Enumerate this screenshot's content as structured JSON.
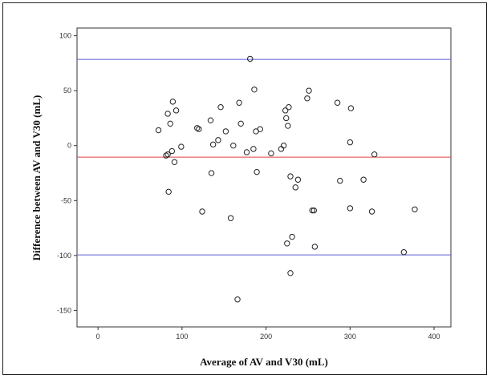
{
  "chart_data": {
    "type": "scatter",
    "xlabel": "Average of AV and V30 (mL)",
    "ylabel": "Difference between AV and V30 (mL)",
    "xlim": [
      -25,
      420
    ],
    "ylim": [
      -165,
      107
    ],
    "xticks": [
      0,
      100,
      200,
      300,
      400
    ],
    "yticks": [
      100,
      50,
      0,
      -50,
      -100,
      -150
    ],
    "grid": false,
    "marker": "open-circle",
    "reference_lines": [
      {
        "name": "upper limit of agreement",
        "y": 78.5,
        "color": "#5b5bd6"
      },
      {
        "name": "mean difference",
        "y": -10.5,
        "color": "#e04040"
      },
      {
        "name": "lower limit of agreement",
        "y": -99.5,
        "color": "#5b5bd6"
      }
    ],
    "points": [
      {
        "x": 72,
        "y": 14
      },
      {
        "x": 81,
        "y": -9
      },
      {
        "x": 83,
        "y": -8
      },
      {
        "x": 83,
        "y": 29
      },
      {
        "x": 84,
        "y": -42
      },
      {
        "x": 86,
        "y": 20
      },
      {
        "x": 88,
        "y": -5
      },
      {
        "x": 89,
        "y": 40
      },
      {
        "x": 91,
        "y": -15
      },
      {
        "x": 93,
        "y": 32
      },
      {
        "x": 99,
        "y": -1
      },
      {
        "x": 118,
        "y": 16
      },
      {
        "x": 120,
        "y": 15
      },
      {
        "x": 124,
        "y": -60
      },
      {
        "x": 134,
        "y": 23
      },
      {
        "x": 135,
        "y": -25
      },
      {
        "x": 137,
        "y": 1
      },
      {
        "x": 143,
        "y": 5
      },
      {
        "x": 146,
        "y": 35
      },
      {
        "x": 152,
        "y": 13
      },
      {
        "x": 158,
        "y": -66
      },
      {
        "x": 161,
        "y": 0
      },
      {
        "x": 166,
        "y": -140
      },
      {
        "x": 168,
        "y": 39
      },
      {
        "x": 170,
        "y": 20
      },
      {
        "x": 177,
        "y": -6
      },
      {
        "x": 181,
        "y": 79
      },
      {
        "x": 185,
        "y": -3
      },
      {
        "x": 186,
        "y": 51
      },
      {
        "x": 188,
        "y": 13
      },
      {
        "x": 189,
        "y": -24
      },
      {
        "x": 193,
        "y": 15
      },
      {
        "x": 206,
        "y": -7
      },
      {
        "x": 218,
        "y": -3
      },
      {
        "x": 221,
        "y": 0
      },
      {
        "x": 223,
        "y": 32
      },
      {
        "x": 224,
        "y": 25
      },
      {
        "x": 225,
        "y": -89
      },
      {
        "x": 226,
        "y": 18
      },
      {
        "x": 227,
        "y": 35
      },
      {
        "x": 229,
        "y": -28
      },
      {
        "x": 229,
        "y": -116
      },
      {
        "x": 231,
        "y": -83
      },
      {
        "x": 235,
        "y": -38
      },
      {
        "x": 238,
        "y": -31
      },
      {
        "x": 249,
        "y": 43
      },
      {
        "x": 251,
        "y": 50
      },
      {
        "x": 255,
        "y": -59
      },
      {
        "x": 257,
        "y": -59
      },
      {
        "x": 258,
        "y": -92
      },
      {
        "x": 285,
        "y": 39
      },
      {
        "x": 288,
        "y": -32
      },
      {
        "x": 300,
        "y": 3
      },
      {
        "x": 300,
        "y": -57
      },
      {
        "x": 301,
        "y": 34
      },
      {
        "x": 316,
        "y": -31
      },
      {
        "x": 326,
        "y": -60
      },
      {
        "x": 329,
        "y": -8
      },
      {
        "x": 364,
        "y": -97
      },
      {
        "x": 377,
        "y": -58
      }
    ]
  }
}
